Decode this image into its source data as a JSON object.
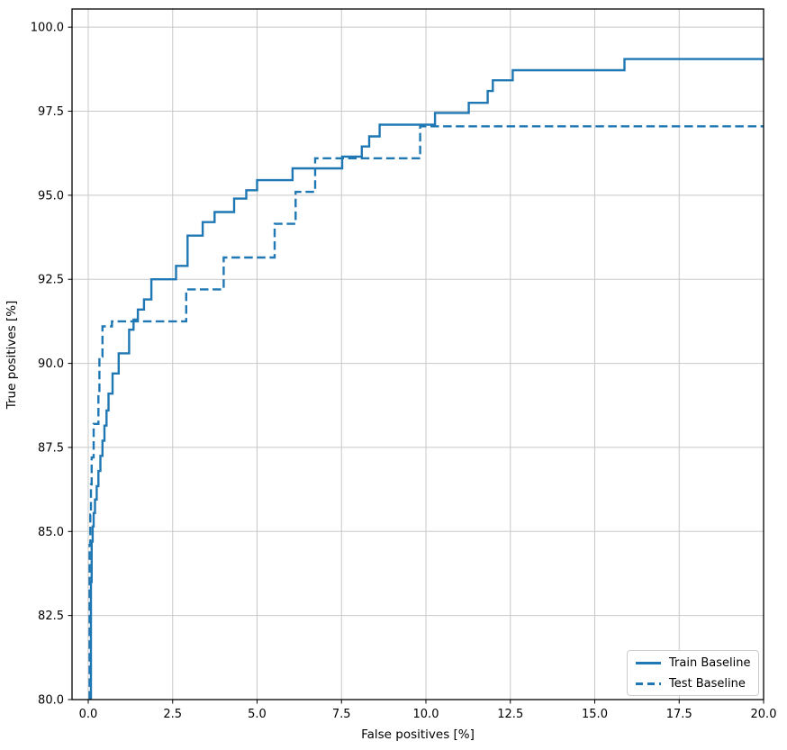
{
  "chart_data": {
    "type": "line",
    "subtype": "step-roc",
    "title": "",
    "xlabel": "False positives [%]",
    "ylabel": "True positives [%]",
    "xlim": [
      -0.48,
      20.0
    ],
    "ylim": [
      80.0,
      100.54
    ],
    "xticks": [
      0.0,
      2.5,
      5.0,
      7.5,
      10.0,
      12.5,
      15.0,
      17.5,
      20.0
    ],
    "xtick_labels": [
      "0.0",
      "2.5",
      "5.0",
      "7.5",
      "10.0",
      "12.5",
      "15.0",
      "17.5",
      "20.0"
    ],
    "yticks": [
      80.0,
      82.5,
      85.0,
      87.5,
      90.0,
      92.5,
      95.0,
      97.5,
      100.0
    ],
    "ytick_labels": [
      "80.0",
      "82.5",
      "85.0",
      "87.5",
      "90.0",
      "92.5",
      "95.0",
      "97.5",
      "100.0"
    ],
    "grid": true,
    "grid_color": "#c8c8c8",
    "line_color": "#1f77b4",
    "spine_color": "#000000",
    "legend_position": "lower right",
    "series": [
      {
        "name": "Train Baseline",
        "style": "solid",
        "points": [
          [
            0.08,
            80.0
          ],
          [
            0.08,
            83.5
          ],
          [
            0.1,
            83.5
          ],
          [
            0.1,
            84.7
          ],
          [
            0.13,
            84.7
          ],
          [
            0.13,
            85.15
          ],
          [
            0.16,
            85.15
          ],
          [
            0.16,
            85.55
          ],
          [
            0.2,
            85.55
          ],
          [
            0.2,
            85.95
          ],
          [
            0.25,
            85.95
          ],
          [
            0.25,
            86.35
          ],
          [
            0.3,
            86.35
          ],
          [
            0.3,
            86.8
          ],
          [
            0.36,
            86.8
          ],
          [
            0.36,
            87.25
          ],
          [
            0.42,
            87.25
          ],
          [
            0.42,
            87.7
          ],
          [
            0.48,
            87.7
          ],
          [
            0.48,
            88.15
          ],
          [
            0.54,
            88.15
          ],
          [
            0.54,
            88.6
          ],
          [
            0.6,
            88.6
          ],
          [
            0.6,
            89.1
          ],
          [
            0.72,
            89.1
          ],
          [
            0.72,
            89.7
          ],
          [
            0.9,
            89.7
          ],
          [
            0.9,
            90.3
          ],
          [
            1.21,
            90.3
          ],
          [
            1.21,
            91.0
          ],
          [
            1.34,
            91.0
          ],
          [
            1.34,
            91.3
          ],
          [
            1.47,
            91.3
          ],
          [
            1.47,
            91.6
          ],
          [
            1.65,
            91.6
          ],
          [
            1.65,
            91.9
          ],
          [
            1.87,
            91.9
          ],
          [
            1.87,
            92.5
          ],
          [
            2.6,
            92.5
          ],
          [
            2.6,
            92.9
          ],
          [
            2.94,
            92.9
          ],
          [
            2.94,
            93.8
          ],
          [
            3.39,
            93.8
          ],
          [
            3.39,
            94.2
          ],
          [
            3.74,
            94.2
          ],
          [
            3.74,
            94.5
          ],
          [
            4.32,
            94.5
          ],
          [
            4.32,
            94.9
          ],
          [
            4.68,
            94.9
          ],
          [
            4.68,
            95.15
          ],
          [
            5.0,
            95.15
          ],
          [
            5.0,
            95.45
          ],
          [
            6.05,
            95.45
          ],
          [
            6.05,
            95.8
          ],
          [
            7.52,
            95.8
          ],
          [
            7.52,
            96.15
          ],
          [
            8.1,
            96.15
          ],
          [
            8.1,
            96.45
          ],
          [
            8.32,
            96.45
          ],
          [
            8.32,
            96.75
          ],
          [
            8.63,
            96.75
          ],
          [
            8.63,
            97.1
          ],
          [
            10.27,
            97.1
          ],
          [
            10.27,
            97.45
          ],
          [
            11.27,
            97.45
          ],
          [
            11.27,
            97.75
          ],
          [
            11.83,
            97.75
          ],
          [
            11.83,
            98.1
          ],
          [
            11.98,
            98.1
          ],
          [
            11.98,
            98.42
          ],
          [
            12.57,
            98.42
          ],
          [
            12.57,
            98.72
          ],
          [
            15.88,
            98.72
          ],
          [
            15.88,
            99.05
          ],
          [
            20.0,
            99.05
          ]
        ]
      },
      {
        "name": "Test Baseline",
        "style": "dashed",
        "points": [
          [
            0.04,
            80.0
          ],
          [
            0.04,
            84.6
          ],
          [
            0.06,
            84.6
          ],
          [
            0.06,
            85.5
          ],
          [
            0.08,
            85.5
          ],
          [
            0.08,
            86.4
          ],
          [
            0.1,
            86.4
          ],
          [
            0.1,
            87.2
          ],
          [
            0.16,
            87.2
          ],
          [
            0.16,
            88.2
          ],
          [
            0.3,
            88.2
          ],
          [
            0.3,
            89.1
          ],
          [
            0.33,
            89.1
          ],
          [
            0.33,
            90.2
          ],
          [
            0.42,
            90.2
          ],
          [
            0.42,
            91.1
          ],
          [
            0.7,
            91.1
          ],
          [
            0.7,
            91.25
          ],
          [
            2.9,
            91.25
          ],
          [
            2.9,
            92.2
          ],
          [
            4.01,
            92.2
          ],
          [
            4.01,
            93.15
          ],
          [
            5.52,
            93.15
          ],
          [
            5.52,
            94.15
          ],
          [
            6.14,
            94.15
          ],
          [
            6.14,
            95.1
          ],
          [
            6.72,
            95.1
          ],
          [
            6.72,
            96.1
          ],
          [
            9.83,
            96.1
          ],
          [
            9.83,
            97.05
          ],
          [
            20.0,
            97.05
          ]
        ]
      }
    ]
  }
}
